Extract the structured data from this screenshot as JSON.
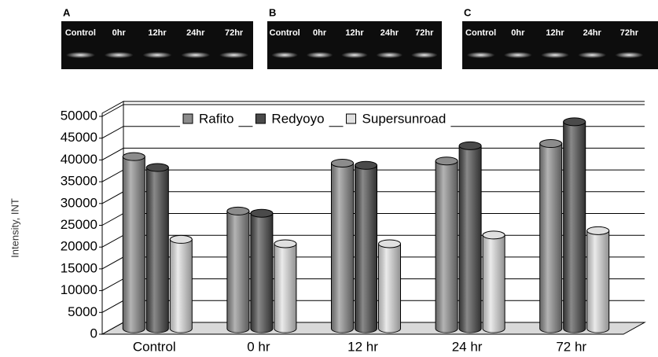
{
  "gels": [
    {
      "label": "A",
      "lanes": [
        "Control",
        "0hr",
        "12hr",
        "24hr",
        "72hr"
      ]
    },
    {
      "label": "B",
      "lanes": [
        "Control",
        "0hr",
        "12hr",
        "24hr",
        "72hr"
      ]
    },
    {
      "label": "C",
      "lanes": [
        "Control",
        "0hr",
        "12hr",
        "24hr",
        "72hr"
      ]
    }
  ],
  "chart_data": {
    "type": "bar3d",
    "ylabel": "Intensity, INT",
    "categories": [
      "Control",
      "0 hr",
      "12 hr",
      "24 hr",
      "72 hr"
    ],
    "series": [
      {
        "name": "Rafito",
        "color": "#8c8c8c",
        "values": [
          39500,
          27000,
          38000,
          38500,
          42500
        ]
      },
      {
        "name": "Redyoyo",
        "color": "#4a4a4a",
        "values": [
          37000,
          26500,
          37500,
          42000,
          47500
        ]
      },
      {
        "name": "Supersunroad",
        "color": "#e0e0e0",
        "values": [
          20500,
          19500,
          19500,
          21500,
          22500
        ]
      }
    ],
    "ylim": [
      0,
      50000
    ],
    "yticks": [
      0,
      5000,
      10000,
      15000,
      20000,
      25000,
      30000,
      35000,
      40000,
      45000,
      50000
    ],
    "grid": true,
    "legend": "top"
  }
}
